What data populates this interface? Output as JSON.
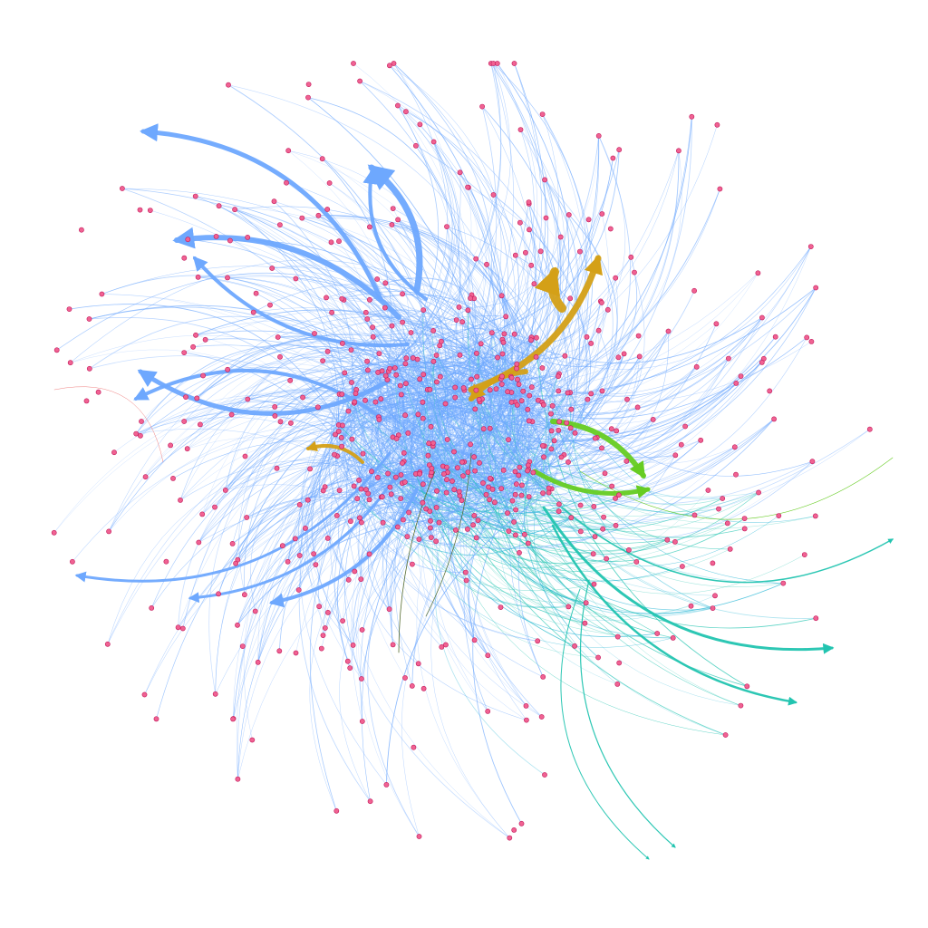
{
  "graph": {
    "node_color": "#f06292",
    "node_stroke": "#c2185b",
    "edge_palette": {
      "primary": "#6ea8fe",
      "orange": "#d4a017",
      "green": "#66cc22",
      "teal": "#22c4b0",
      "cyan": "#2ab7d6",
      "red": "#f08080",
      "dark": "#556b2f"
    },
    "arrowheads": true,
    "node_count_estimate": 600
  }
}
